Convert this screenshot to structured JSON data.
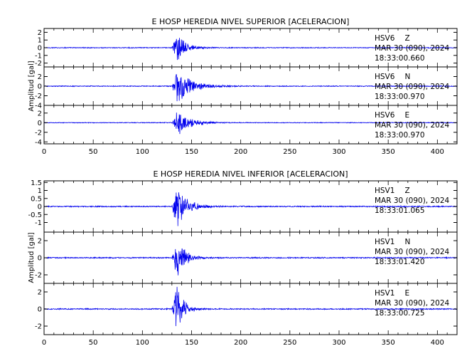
{
  "chart_data": [
    {
      "type": "line",
      "title": "E HOSP HEREDIA NIVEL SUPERIOR [ACELERACION]",
      "ylabel": "Amplitud [gal]",
      "xlim": [
        0,
        420
      ],
      "x_ticks": [
        0,
        50,
        100,
        150,
        200,
        250,
        300,
        350,
        400
      ],
      "event_center_x": 136,
      "series": [
        {
          "name": "HSV6 Z",
          "station": "HSV6",
          "component": "Z",
          "date": "MAR 30 (090), 2024",
          "time": "18:33:00.660",
          "ylim": [
            -2.5,
            2.5
          ],
          "yticks": [
            2,
            1,
            0,
            -1,
            -2
          ],
          "peak": 2.0,
          "noise": 0.06,
          "decay": 8
        },
        {
          "name": "HSV6 N",
          "station": "HSV6",
          "component": "N",
          "date": "MAR 30 (090), 2024",
          "time": "18:33:00.970",
          "ylim": [
            -4.0,
            4.0
          ],
          "yticks": [
            2,
            0,
            -2,
            -4
          ],
          "peak": 3.7,
          "noise": 0.1,
          "decay": 14
        },
        {
          "name": "HSV6 E",
          "station": "HSV6",
          "component": "E",
          "date": "MAR 30 (090), 2024",
          "time": "18:33:00.970",
          "ylim": [
            -4.4,
            3.6
          ],
          "yticks": [
            2,
            0,
            -2,
            -4
          ],
          "peak": 2.8,
          "noise": 0.08,
          "decay": 12
        }
      ]
    },
    {
      "type": "line",
      "title": "E HOSP HEREDIA NIVEL INFERIOR [ACELERACION]",
      "ylabel": "Amplitud [gal]",
      "xlim": [
        0,
        420
      ],
      "x_ticks": [
        0,
        50,
        100,
        150,
        200,
        250,
        300,
        350,
        400
      ],
      "event_center_x": 136,
      "series": [
        {
          "name": "HSV1 Z",
          "station": "HSV1",
          "component": "Z",
          "date": "MAR 30 (090), 2024",
          "time": "18:33:01.065",
          "ylim": [
            -1.6,
            1.6
          ],
          "yticks": [
            1.5,
            1.0,
            0.5,
            0.0,
            -0.5,
            -1.0
          ],
          "peak": 1.3,
          "noise": 0.04,
          "decay": 10
        },
        {
          "name": "HSV1 N",
          "station": "HSV1",
          "component": "N",
          "date": "MAR 30 (090), 2024",
          "time": "18:33:01.420",
          "ylim": [
            -3.0,
            3.0
          ],
          "yticks": [
            2,
            0,
            -2
          ],
          "peak": 2.6,
          "noise": 0.07,
          "decay": 8
        },
        {
          "name": "HSV1 E",
          "station": "HSV1",
          "component": "E",
          "date": "MAR 30 (090), 2024",
          "time": "18:33:00.725",
          "ylim": [
            -3.0,
            3.0
          ],
          "yticks": [
            2,
            0,
            -2
          ],
          "peak": 2.9,
          "noise": 0.07,
          "decay": 6
        }
      ]
    }
  ],
  "colors": {
    "trace": "#0000ee",
    "axis": "#000000",
    "background": "#ffffff"
  }
}
